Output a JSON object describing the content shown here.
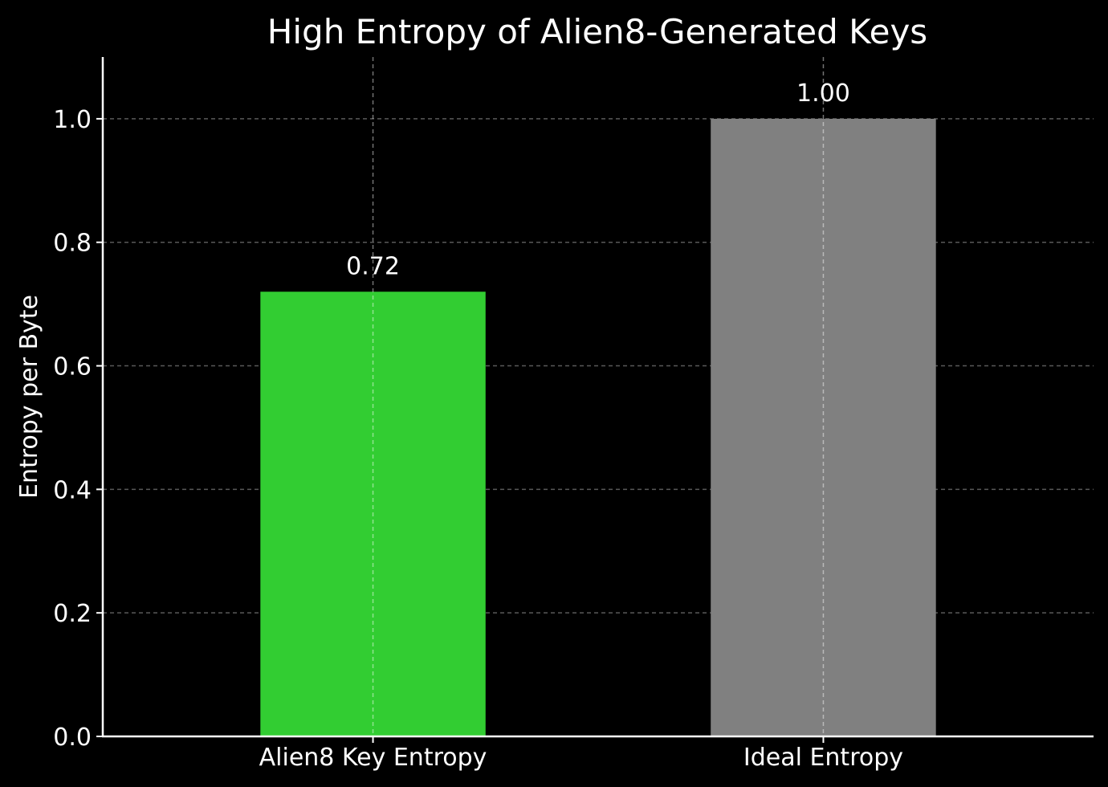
{
  "chart_data": {
    "type": "bar",
    "title": "High Entropy of Alien8-Generated Keys",
    "xlabel": "",
    "ylabel": "Entropy per Byte",
    "categories": [
      "Alien8 Key Entropy",
      "Ideal Entropy"
    ],
    "values": [
      0.72,
      1.0
    ],
    "data_labels": [
      "0.72",
      "1.00"
    ],
    "bar_colors": [
      "#32cd32",
      "#808080"
    ],
    "ylim": [
      0,
      1.1
    ],
    "yticks": [
      0.0,
      0.2,
      0.4,
      0.6,
      0.8,
      1.0
    ],
    "ytick_labels": [
      "0.0",
      "0.2",
      "0.4",
      "0.6",
      "0.8",
      "1.0"
    ],
    "grid": true,
    "background": "#000000",
    "foreground": "#ffffff"
  }
}
